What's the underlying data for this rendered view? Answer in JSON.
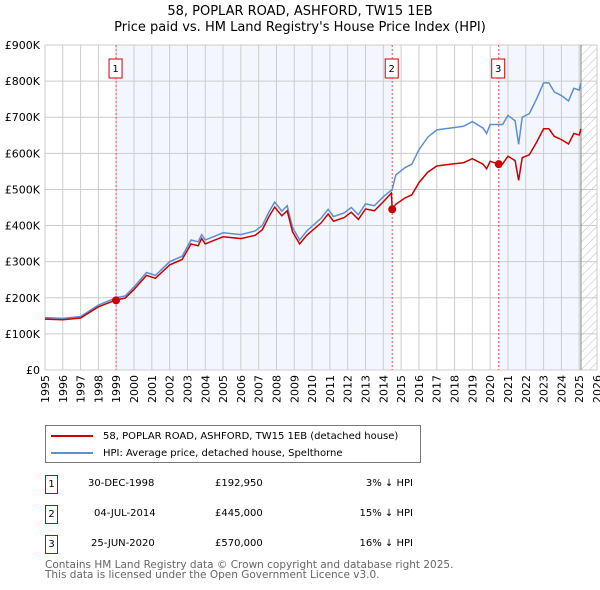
{
  "chart_data": {
    "type": "line",
    "title": "58, POPLAR ROAD, ASHFORD, TW15 1EB",
    "subtitle": "Price paid vs. HM Land Registry's House Price Index (HPI)",
    "xlim": [
      1995,
      2026
    ],
    "ylim": [
      0,
      900000
    ],
    "x_ticks": [
      "1995",
      "1996",
      "1997",
      "1998",
      "1999",
      "2000",
      "2001",
      "2002",
      "2003",
      "2004",
      "2005",
      "2006",
      "2007",
      "2008",
      "2009",
      "2010",
      "2011",
      "2012",
      "2013",
      "2014",
      "2015",
      "2016",
      "2017",
      "2018",
      "2019",
      "2020",
      "2021",
      "2022",
      "2023",
      "2024",
      "2025",
      "2026"
    ],
    "y_ticks": [
      "£0",
      "£100K",
      "£200K",
      "£300K",
      "£400K",
      "£500K",
      "£600K",
      "£700K",
      "£800K",
      "£900K"
    ],
    "grid": true,
    "series": [
      {
        "name": "58, POPLAR ROAD, ASHFORD, TW15 1EB (detached house)",
        "color": "#cc0000",
        "x": [
          1995,
          1996,
          1997,
          1998,
          1999,
          1999.5,
          2000,
          2000.7,
          2001.2,
          2002,
          2002.7,
          2003.2,
          2003.6,
          2003.8,
          2004,
          2004.5,
          2005,
          2006,
          2006.8,
          2007.2,
          2007.6,
          2007.9,
          2008.3,
          2008.6,
          2008.9,
          2009.3,
          2009.7,
          2010.5,
          2010.9,
          2011.2,
          2011.8,
          2012.2,
          2012.6,
          2013,
          2013.5,
          2014,
          2014.45,
          2014.5,
          2014.7,
          2015.2,
          2015.6,
          2016,
          2016.5,
          2017,
          2017.8,
          2018.5,
          2019,
          2019.6,
          2019.8,
          2020,
          2020.5,
          2020.7,
          2021,
          2021.4,
          2021.6,
          2021.8,
          2022.2,
          2022.6,
          2023,
          2023.3,
          2023.6,
          2024,
          2024.4,
          2024.7,
          2025,
          2025.1
        ],
        "y": [
          141,
          139,
          144,
          175,
          194,
          199,
          223,
          262,
          254,
          291,
          306,
          349,
          344,
          364,
          349,
          359,
          369,
          364,
          373,
          388,
          427,
          451,
          427,
          441,
          383,
          349,
          373,
          407,
          432,
          412,
          422,
          437,
          417,
          446,
          441,
          466,
          490,
          445,
          459,
          476,
          485,
          519,
          548,
          565,
          570,
          574,
          585,
          570,
          557,
          578,
          570,
          571,
          592,
          580,
          525,
          588,
          596,
          630,
          668,
          668,
          647,
          638,
          626,
          655,
          651,
          668
        ]
      },
      {
        "name": "HPI: Average price, detached house, Spelthorne",
        "color": "#5b8fd4",
        "x": [
          1995,
          1996,
          1997,
          1998,
          1999,
          1999.5,
          2000,
          2000.7,
          2001.2,
          2002,
          2002.7,
          2003.2,
          2003.6,
          2003.8,
          2004,
          2004.5,
          2005,
          2006,
          2006.8,
          2007.2,
          2007.6,
          2007.9,
          2008.3,
          2008.6,
          2008.9,
          2009.3,
          2009.7,
          2010.5,
          2010.9,
          2011.2,
          2011.8,
          2012.2,
          2012.6,
          2013,
          2013.5,
          2014,
          2014.5,
          2014.7,
          2015.2,
          2015.6,
          2016,
          2016.5,
          2017,
          2017.8,
          2018.5,
          2019,
          2019.6,
          2019.8,
          2020,
          2020.7,
          2021,
          2021.4,
          2021.6,
          2021.8,
          2022.2,
          2022.6,
          2023,
          2023.3,
          2023.6,
          2024,
          2024.4,
          2024.7,
          2025,
          2025.1
        ],
        "y": [
          145,
          143,
          148,
          180,
          200,
          205,
          230,
          270,
          262,
          300,
          315,
          360,
          355,
          375,
          360,
          370,
          380,
          375,
          385,
          400,
          440,
          465,
          440,
          455,
          395,
          360,
          385,
          420,
          445,
          425,
          435,
          450,
          430,
          460,
          455,
          480,
          500,
          540,
          560,
          570,
          610,
          645,
          665,
          670,
          675,
          688,
          670,
          655,
          680,
          680,
          705,
          690,
          625,
          700,
          710,
          750,
          795,
          795,
          770,
          760,
          745,
          780,
          775,
          795
        ]
      }
    ],
    "y_unit": "thousands GBP",
    "sales": [
      {
        "label": "1",
        "x": 1998.99,
        "price": 192950,
        "date": "30-DEC-1998",
        "price_text": "£192,950",
        "hpi": "3% ↓ HPI"
      },
      {
        "label": "2",
        "x": 2014.5,
        "price": 445000,
        "date": "04-JUL-2014",
        "price_text": "£445,000",
        "hpi": "15% ↓ HPI"
      },
      {
        "label": "3",
        "x": 2020.48,
        "price": 570000,
        "date": "25-JUN-2020",
        "price_text": "£570,000",
        "hpi": "16% ↓ HPI"
      }
    ],
    "forecast_from": 2025.1,
    "legend_position": "below"
  },
  "footer": [
    "Contains HM Land Registry data © Crown copyright and database right 2025.",
    "This data is licensed under the Open Government Licence v3.0."
  ]
}
